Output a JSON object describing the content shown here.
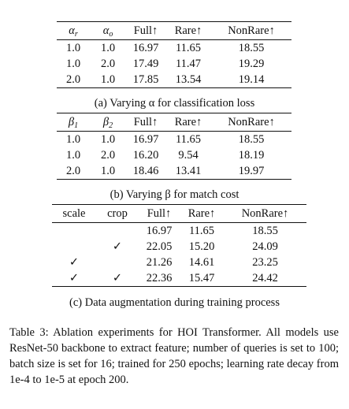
{
  "table_a": {
    "headers": [
      "α",
      "r",
      "α",
      "o",
      "Full↑",
      "Rare↑",
      "NonRare↑"
    ],
    "rows": [
      [
        "1.0",
        "1.0",
        "16.97",
        "11.65",
        "18.55"
      ],
      [
        "1.0",
        "2.0",
        "17.49",
        "11.47",
        "19.29"
      ],
      [
        "2.0",
        "1.0",
        "17.85",
        "13.54",
        "19.14"
      ]
    ],
    "caption": "(a) Varying α for classification loss"
  },
  "table_b": {
    "headers": [
      "β",
      "1",
      "β",
      "2",
      "Full↑",
      "Rare↑",
      "NonRare↑"
    ],
    "rows": [
      [
        "1.0",
        "1.0",
        "16.97",
        "11.65",
        "18.55"
      ],
      [
        "1.0",
        "2.0",
        "16.20",
        "9.54",
        "18.19"
      ],
      [
        "2.0",
        "1.0",
        "18.46",
        "13.41",
        "19.97"
      ]
    ],
    "caption": "(b) Varying β for match cost"
  },
  "table_c": {
    "headers": [
      "scale",
      "crop",
      "Full↑",
      "Rare↑",
      "NonRare↑"
    ],
    "rows": [
      [
        "",
        "",
        "16.97",
        "11.65",
        "18.55"
      ],
      [
        "",
        "✓",
        "22.05",
        "15.20",
        "24.09"
      ],
      [
        "✓",
        "",
        "21.26",
        "14.61",
        "23.25"
      ],
      [
        "✓",
        "✓",
        "22.36",
        "15.47",
        "24.42"
      ]
    ],
    "caption": "(c) Data augmentation during training process"
  },
  "main_caption": "Table 3: Ablation experiments for HOI Transformer. All models use ResNet-50 backbone to extract feature; number of queries is set to 100; batch size is set for 16; trained for 250 epochs; learning rate decay from 1e-4 to 1e-5 at epoch 200."
}
